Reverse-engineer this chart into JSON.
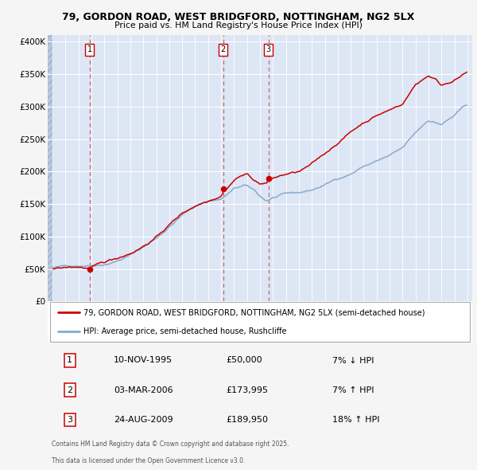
{
  "title1": "79, GORDON ROAD, WEST BRIDGFORD, NOTTINGHAM, NG2 5LX",
  "title2": "Price paid vs. HM Land Registry's House Price Index (HPI)",
  "legend1": "79, GORDON ROAD, WEST BRIDGFORD, NOTTINGHAM, NG2 5LX (semi-detached house)",
  "legend2": "HPI: Average price, semi-detached house, Rushcliffe",
  "footer1": "Contains HM Land Registry data © Crown copyright and database right 2025.",
  "footer2": "This data is licensed under the Open Government Licence v3.0.",
  "sale1_date": "10-NOV-1995",
  "sale1_price": "£50,000",
  "sale1_hpi": "7% ↓ HPI",
  "sale2_date": "03-MAR-2006",
  "sale2_price": "£173,995",
  "sale2_hpi": "7% ↑ HPI",
  "sale3_date": "24-AUG-2009",
  "sale3_price": "£189,950",
  "sale3_hpi": "18% ↑ HPI",
  "sale1_year": 1995.87,
  "sale1_value": 50000,
  "sale2_year": 2006.17,
  "sale2_value": 173995,
  "sale3_year": 2009.65,
  "sale3_value": 189950,
  "overall_bg": "#f5f5f5",
  "plot_bg": "#dce6f5",
  "hatch_color": "#b8c8de",
  "red_color": "#cc0000",
  "blue_color": "#88aacc",
  "dashed_color": "#cc6666",
  "grid_color": "#ffffff",
  "legend_border": "#aaaaaa",
  "ylim_max": 410000,
  "start_year": 1993,
  "end_year": 2025
}
